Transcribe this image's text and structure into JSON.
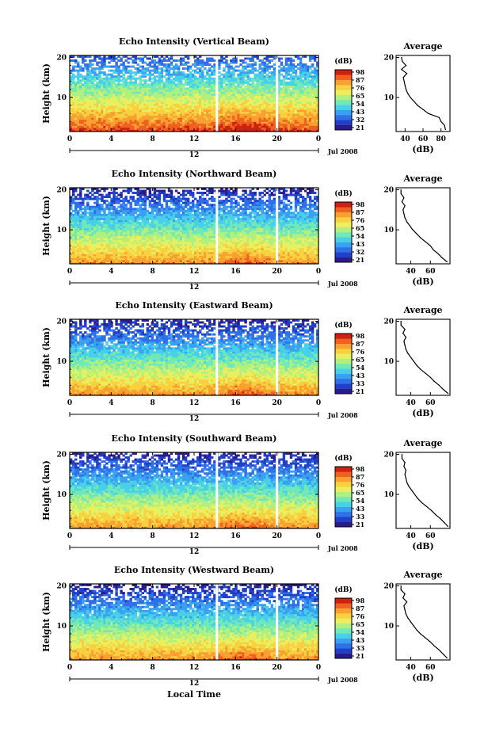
{
  "chart_data": [
    {
      "type": "heatmap",
      "title": "Echo Intensity (Vertical Beam)",
      "ylabel": "Height (km)",
      "x_ticks": [
        "0",
        "4",
        "8",
        "12",
        "16",
        "20",
        "0"
      ],
      "y_ticks": [
        "10",
        "20"
      ],
      "xlim": [
        0,
        24
      ],
      "ylim": [
        1.5,
        20.5
      ],
      "date_marker": "12",
      "date_label": "Jul 2008",
      "colorbar": {
        "unit": "(dB)",
        "ticks": [
          "98",
          "87",
          "76",
          "65",
          "54",
          "43",
          "32",
          "21"
        ]
      },
      "gaps_hours": [
        14.2,
        20.0
      ],
      "surface_db": 90,
      "profile": {
        "title": "Average",
        "xlabel": "(dB)",
        "x_ticks": [
          "40",
          "60",
          "80"
        ],
        "xlim": [
          30,
          90
        ],
        "heights": [
          2,
          3,
          4,
          5,
          6,
          7,
          8,
          9,
          10,
          11,
          12,
          13,
          14,
          15,
          16,
          17,
          18,
          19,
          20
        ],
        "values": [
          85,
          84,
          80,
          78,
          66,
          60,
          54,
          50,
          46,
          43,
          41,
          40,
          39,
          38,
          42,
          36,
          41,
          37,
          36
        ]
      }
    },
    {
      "type": "heatmap",
      "title": "Echo Intensity (Northward Beam)",
      "ylabel": "Height (km)",
      "x_ticks": [
        "0",
        "4",
        "8",
        "12",
        "16",
        "20",
        "0"
      ],
      "y_ticks": [
        "10",
        "20"
      ],
      "xlim": [
        0,
        24
      ],
      "ylim": [
        1.5,
        20.5
      ],
      "date_marker": "12",
      "date_label": "Jul 2008",
      "colorbar": {
        "unit": "(dB)",
        "ticks": [
          "98",
          "87",
          "76",
          "65",
          "54",
          "43",
          "32",
          "21"
        ]
      },
      "gaps_hours": [
        14.2,
        20.0
      ],
      "surface_db": 82,
      "profile": {
        "title": "Average",
        "xlabel": "(dB)",
        "x_ticks": [
          "40",
          "60"
        ],
        "xlim": [
          25,
          80
        ],
        "heights": [
          2,
          3,
          4,
          5,
          6,
          7,
          8,
          9,
          10,
          11,
          12,
          13,
          14,
          15,
          16,
          17,
          18,
          19,
          20
        ],
        "values": [
          77,
          72,
          68,
          63,
          60,
          55,
          50,
          46,
          42,
          39,
          36,
          34,
          33,
          32,
          34,
          31,
          33,
          30,
          30
        ]
      }
    },
    {
      "type": "heatmap",
      "title": "Echo Intensity (Eastward Beam)",
      "ylabel": "Height (km)",
      "x_ticks": [
        "0",
        "4",
        "8",
        "12",
        "16",
        "20",
        "0"
      ],
      "y_ticks": [
        "10",
        "20"
      ],
      "xlim": [
        0,
        24
      ],
      "ylim": [
        1.5,
        20.5
      ],
      "date_marker": "12",
      "date_label": "Jul 2008",
      "colorbar": {
        "unit": "(dB)",
        "ticks": [
          "98",
          "87",
          "76",
          "65",
          "54",
          "43",
          "33",
          "21"
        ]
      },
      "gaps_hours": [
        14.2,
        20.0
      ],
      "surface_db": 82,
      "profile": {
        "title": "Average",
        "xlabel": "(dB)",
        "x_ticks": [
          "40",
          "60"
        ],
        "xlim": [
          25,
          80
        ],
        "heights": [
          2,
          3,
          4,
          5,
          6,
          7,
          8,
          9,
          10,
          11,
          12,
          13,
          14,
          15,
          16,
          17,
          18,
          19,
          20
        ],
        "values": [
          78,
          73,
          69,
          64,
          60,
          55,
          50,
          46,
          43,
          40,
          37,
          35,
          34,
          33,
          35,
          32,
          34,
          30,
          30
        ]
      }
    },
    {
      "type": "heatmap",
      "title": "Echo Intensity (Southward Beam)",
      "ylabel": "Height (km)",
      "x_ticks": [
        "0",
        "4",
        "8",
        "12",
        "16",
        "20",
        "0"
      ],
      "y_ticks": [
        "10",
        "20"
      ],
      "xlim": [
        0,
        24
      ],
      "ylim": [
        1.5,
        20.5
      ],
      "date_marker": "12",
      "date_label": "Jul 2008",
      "colorbar": {
        "unit": "(dB)",
        "ticks": [
          "98",
          "87",
          "76",
          "65",
          "54",
          "43",
          "33",
          "21"
        ]
      },
      "gaps_hours": [
        14.2,
        20.0
      ],
      "surface_db": 82,
      "profile": {
        "title": "Average",
        "xlabel": "(dB)",
        "x_ticks": [
          "40",
          "60"
        ],
        "xlim": [
          25,
          80
        ],
        "heights": [
          2,
          3,
          4,
          5,
          6,
          7,
          8,
          9,
          10,
          11,
          12,
          13,
          14,
          15,
          16,
          17,
          18,
          19,
          20
        ],
        "values": [
          78,
          74,
          70,
          65,
          61,
          56,
          51,
          47,
          44,
          41,
          38,
          36,
          35,
          34,
          35,
          33,
          34,
          31,
          31
        ]
      }
    },
    {
      "type": "heatmap",
      "title": "Echo Intensity (Westward Beam)",
      "ylabel": "Height (km)",
      "x_ticks": [
        "0",
        "4",
        "8",
        "12",
        "16",
        "20",
        "0"
      ],
      "y_ticks": [
        "10",
        "20"
      ],
      "xlim": [
        0,
        24
      ],
      "ylim": [
        1.5,
        20.5
      ],
      "date_marker": "12",
      "date_label": "Jul 2008",
      "colorbar": {
        "unit": "(dB)",
        "ticks": [
          "98",
          "87",
          "76",
          "65",
          "54",
          "43",
          "33",
          "21"
        ]
      },
      "gaps_hours": [
        14.2,
        20.0
      ],
      "surface_db": 82,
      "profile": {
        "title": "Average",
        "xlabel": "(dB)",
        "x_ticks": [
          "40",
          "60"
        ],
        "xlim": [
          25,
          80
        ],
        "heights": [
          2,
          3,
          4,
          5,
          6,
          7,
          8,
          9,
          10,
          11,
          12,
          13,
          14,
          15,
          16,
          17,
          18,
          19,
          20
        ],
        "values": [
          77,
          73,
          69,
          64,
          60,
          55,
          50,
          46,
          43,
          40,
          37,
          35,
          34,
          33,
          36,
          32,
          34,
          30,
          30
        ]
      }
    }
  ],
  "xlabel": "Local Time",
  "colorscale": [
    "#2a1a8a",
    "#2040c8",
    "#2f70e8",
    "#3aa0f0",
    "#48d0e8",
    "#70e8b8",
    "#b0f080",
    "#e8f060",
    "#f8d040",
    "#f8a030",
    "#f06020",
    "#d02010"
  ]
}
